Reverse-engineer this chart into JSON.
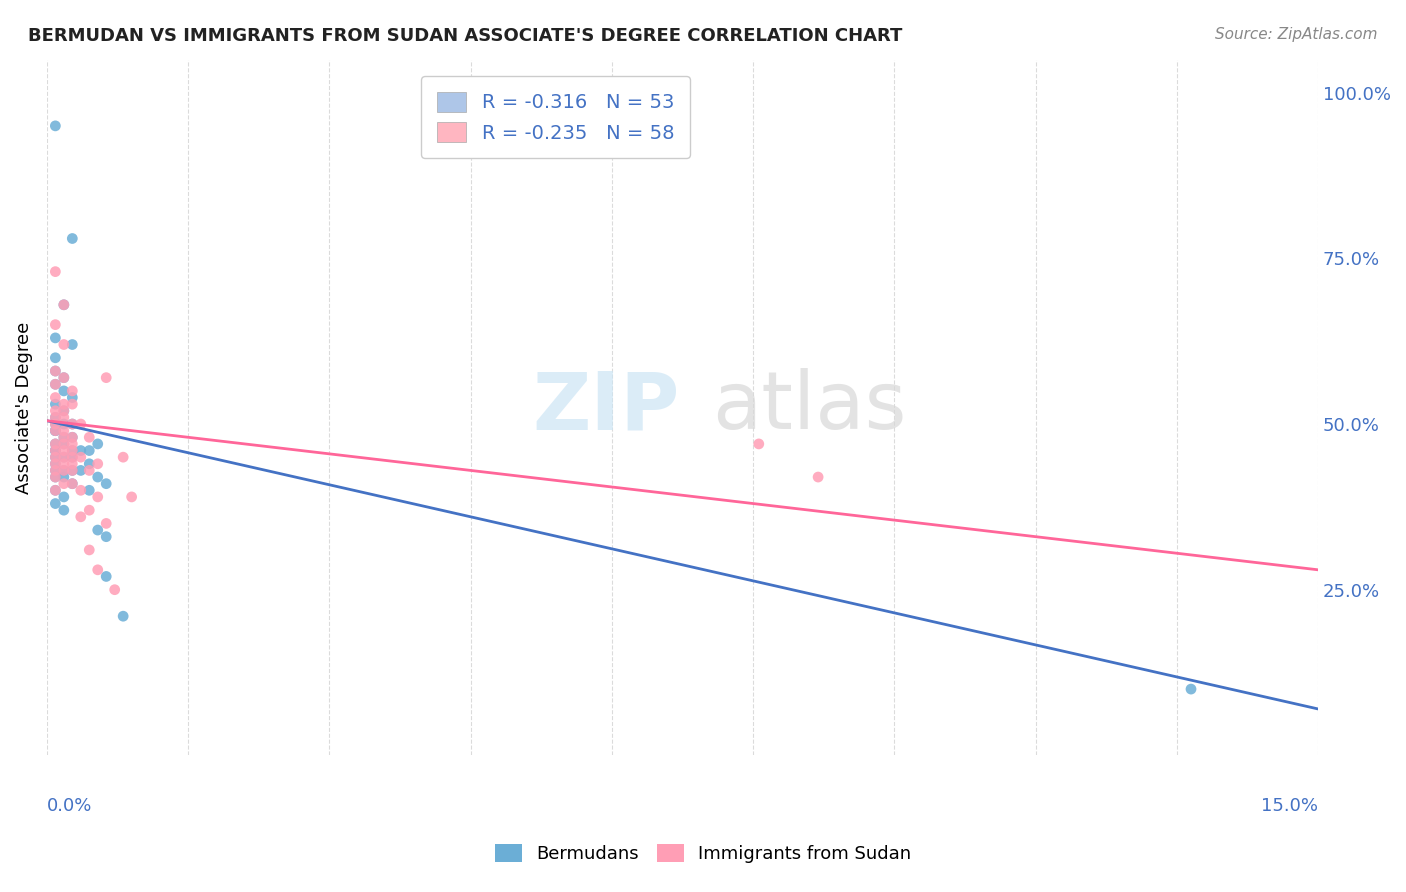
{
  "title": "BERMUDAN VS IMMIGRANTS FROM SUDAN ASSOCIATE'S DEGREE CORRELATION CHART",
  "source": "Source: ZipAtlas.com",
  "ylabel": "Associate's Degree",
  "right_yticks": [
    "100.0%",
    "75.0%",
    "50.0%",
    "25.0%"
  ],
  "right_ytick_vals": [
    1.0,
    0.75,
    0.5,
    0.25
  ],
  "legend_entries": [
    {
      "label": "R = -0.316   N = 53",
      "color": "#aec6e8"
    },
    {
      "label": "R = -0.235   N = 58",
      "color": "#ffb6c1"
    }
  ],
  "bermudans_scatter": [
    [
      0.001,
      0.95
    ],
    [
      0.003,
      0.78
    ],
    [
      0.002,
      0.68
    ],
    [
      0.001,
      0.63
    ],
    [
      0.003,
      0.62
    ],
    [
      0.001,
      0.6
    ],
    [
      0.001,
      0.58
    ],
    [
      0.002,
      0.57
    ],
    [
      0.001,
      0.56
    ],
    [
      0.002,
      0.55
    ],
    [
      0.003,
      0.54
    ],
    [
      0.001,
      0.53
    ],
    [
      0.002,
      0.52
    ],
    [
      0.001,
      0.51
    ],
    [
      0.003,
      0.5
    ],
    [
      0.001,
      0.5
    ],
    [
      0.002,
      0.5
    ],
    [
      0.001,
      0.49
    ],
    [
      0.001,
      0.49
    ],
    [
      0.002,
      0.48
    ],
    [
      0.003,
      0.48
    ],
    [
      0.001,
      0.47
    ],
    [
      0.002,
      0.47
    ],
    [
      0.001,
      0.46
    ],
    [
      0.003,
      0.46
    ],
    [
      0.001,
      0.46
    ],
    [
      0.001,
      0.45
    ],
    [
      0.002,
      0.45
    ],
    [
      0.003,
      0.45
    ],
    [
      0.001,
      0.44
    ],
    [
      0.001,
      0.43
    ],
    [
      0.002,
      0.43
    ],
    [
      0.003,
      0.43
    ],
    [
      0.001,
      0.42
    ],
    [
      0.002,
      0.42
    ],
    [
      0.003,
      0.41
    ],
    [
      0.001,
      0.4
    ],
    [
      0.002,
      0.39
    ],
    [
      0.001,
      0.38
    ],
    [
      0.002,
      0.37
    ],
    [
      0.004,
      0.46
    ],
    [
      0.005,
      0.46
    ],
    [
      0.006,
      0.47
    ],
    [
      0.005,
      0.44
    ],
    [
      0.004,
      0.43
    ],
    [
      0.006,
      0.42
    ],
    [
      0.007,
      0.41
    ],
    [
      0.005,
      0.4
    ],
    [
      0.006,
      0.34
    ],
    [
      0.007,
      0.33
    ],
    [
      0.007,
      0.27
    ],
    [
      0.009,
      0.21
    ],
    [
      0.135,
      0.1
    ]
  ],
  "sudan_scatter": [
    [
      0.001,
      0.73
    ],
    [
      0.002,
      0.68
    ],
    [
      0.001,
      0.65
    ],
    [
      0.002,
      0.62
    ],
    [
      0.001,
      0.58
    ],
    [
      0.002,
      0.57
    ],
    [
      0.001,
      0.56
    ],
    [
      0.003,
      0.55
    ],
    [
      0.001,
      0.54
    ],
    [
      0.002,
      0.53
    ],
    [
      0.003,
      0.53
    ],
    [
      0.001,
      0.52
    ],
    [
      0.002,
      0.52
    ],
    [
      0.001,
      0.51
    ],
    [
      0.002,
      0.51
    ],
    [
      0.003,
      0.5
    ],
    [
      0.001,
      0.5
    ],
    [
      0.002,
      0.49
    ],
    [
      0.001,
      0.49
    ],
    [
      0.002,
      0.48
    ],
    [
      0.003,
      0.48
    ],
    [
      0.001,
      0.47
    ],
    [
      0.002,
      0.47
    ],
    [
      0.003,
      0.47
    ],
    [
      0.001,
      0.46
    ],
    [
      0.002,
      0.46
    ],
    [
      0.003,
      0.46
    ],
    [
      0.001,
      0.45
    ],
    [
      0.002,
      0.45
    ],
    [
      0.003,
      0.45
    ],
    [
      0.001,
      0.44
    ],
    [
      0.002,
      0.44
    ],
    [
      0.003,
      0.44
    ],
    [
      0.001,
      0.43
    ],
    [
      0.002,
      0.43
    ],
    [
      0.003,
      0.43
    ],
    [
      0.001,
      0.42
    ],
    [
      0.002,
      0.41
    ],
    [
      0.003,
      0.41
    ],
    [
      0.001,
      0.4
    ],
    [
      0.004,
      0.5
    ],
    [
      0.005,
      0.48
    ],
    [
      0.004,
      0.45
    ],
    [
      0.006,
      0.44
    ],
    [
      0.005,
      0.43
    ],
    [
      0.004,
      0.4
    ],
    [
      0.006,
      0.39
    ],
    [
      0.005,
      0.37
    ],
    [
      0.004,
      0.36
    ],
    [
      0.007,
      0.35
    ],
    [
      0.005,
      0.31
    ],
    [
      0.006,
      0.28
    ],
    [
      0.008,
      0.25
    ],
    [
      0.007,
      0.57
    ],
    [
      0.009,
      0.45
    ],
    [
      0.084,
      0.47
    ],
    [
      0.091,
      0.42
    ],
    [
      0.01,
      0.39
    ]
  ],
  "blue_line": {
    "x": [
      0.0,
      0.15
    ],
    "y": [
      0.505,
      0.07
    ]
  },
  "pink_line": {
    "x": [
      0.0,
      0.15
    ],
    "y": [
      0.505,
      0.28
    ]
  },
  "scatter_color_blue": "#6baed6",
  "scatter_color_pink": "#ff9eb5",
  "line_color_blue": "#4472c4",
  "line_color_pink": "#ff6699",
  "legend_box_blue": "#aec6e8",
  "legend_box_pink": "#ffb6c1",
  "xmin": 0.0,
  "xmax": 0.15,
  "ymin": 0.0,
  "ymax": 1.05
}
